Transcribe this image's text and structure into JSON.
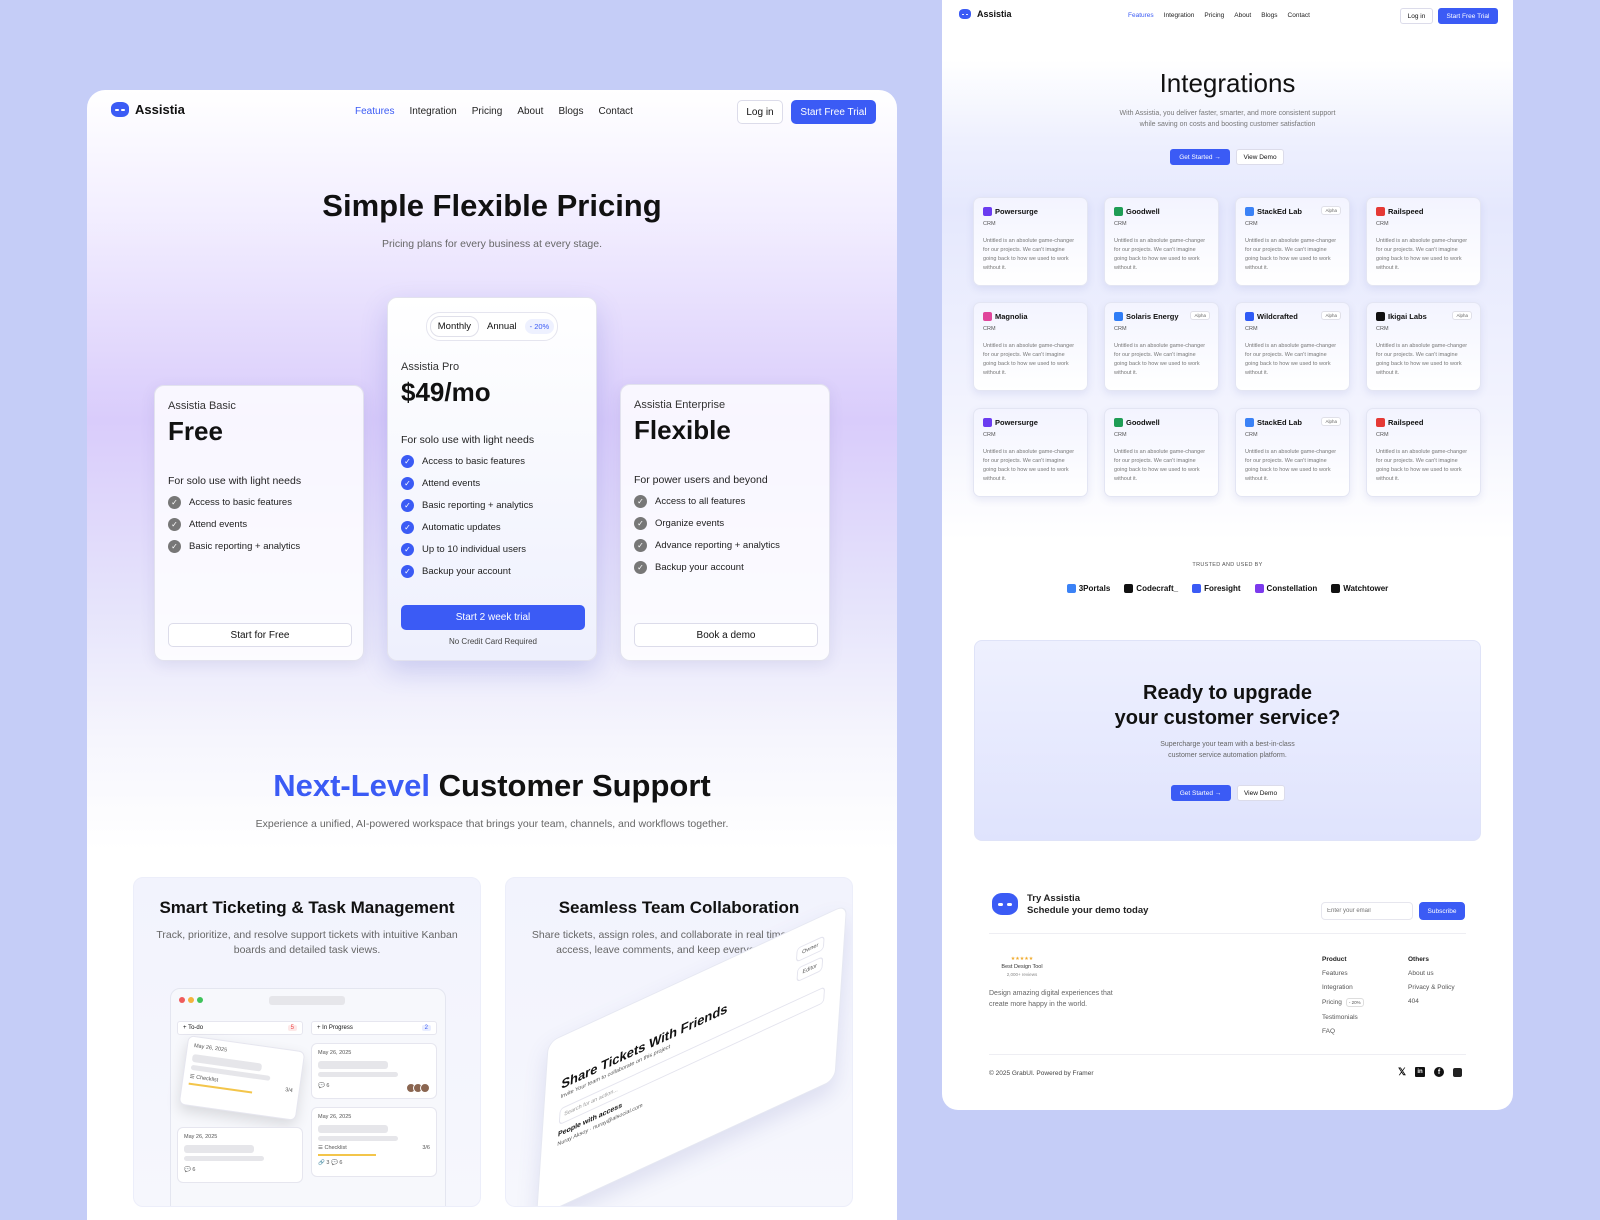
{
  "colors": {
    "accent": "#3b5bf5",
    "background": "#c5cdf7"
  },
  "brand": "Assistia",
  "nav": {
    "items": [
      "Features",
      "Integration",
      "Pricing",
      "About",
      "Blogs",
      "Contact"
    ],
    "active": "Features",
    "login": "Log in",
    "trial": "Start Free Trial"
  },
  "pricing": {
    "title": "Simple Flexible Pricing",
    "subtitle": "Pricing plans for every business at every stage.",
    "toggle": {
      "monthly": "Monthly",
      "annual": "Annual",
      "discount": "- 20%",
      "selected": "Monthly"
    },
    "plans": [
      {
        "name": "Assistia Basic",
        "price": "Free",
        "desc": "For solo use with light needs",
        "features": [
          "Access to basic features",
          "Attend events",
          "Basic reporting + analytics"
        ],
        "cta": "Start for Free"
      },
      {
        "name": "Assistia Pro",
        "price": "$49/mo",
        "desc": "For solo use with light needs",
        "features": [
          "Access to basic features",
          "Attend events",
          "Basic reporting + analytics",
          "Automatic updates",
          "Up to 10 individual users",
          "Backup your account"
        ],
        "cta": "Start 2 week trial",
        "note": "No Credit Card Required"
      },
      {
        "name": "Assistia Enterprise",
        "price": "Flexible",
        "desc": "For power users and beyond",
        "features": [
          "Access to all features",
          "Organize events",
          "Advance reporting + analytics",
          "Backup your account"
        ],
        "cta": "Book a demo"
      }
    ]
  },
  "support": {
    "title_accent": "Next-Level",
    "title_rest": "Customer Support",
    "subtitle": "Experience a unified, AI-powered workspace that brings your team, channels, and workflows together.",
    "features": [
      {
        "title": "Smart Ticketing & Task Management",
        "desc": "Track, prioritize, and resolve support tickets with intuitive Kanban boards and detailed task views."
      },
      {
        "title": "Seamless Team Collaboration",
        "desc": "Share tickets, assign roles, and collaborate in real time. Control access, leave comments, and keep everyone in sync"
      }
    ],
    "kanban": {
      "todo": "To-do",
      "todo_count": "5",
      "progress": "In Progress",
      "progress_count": "2",
      "date": "May 26, 2025",
      "checklist": "Checklist",
      "checklist_a": "3/4",
      "checklist_b": "3/6",
      "links": "3",
      "comments": "6"
    },
    "share": {
      "title": "Share Tickets With Friends",
      "subtitle": "Invite Your team to collaborate on this project",
      "search": "Search for an action...",
      "people": "People with access",
      "person": "Nuray Aksoy",
      "email": "nuray@alsocial.com",
      "owner": "Owner",
      "editor": "Editor"
    }
  },
  "integrations": {
    "title": "Integrations",
    "subtitle_1": "With Assistia, you deliver faster, smarter, and more consistent support",
    "subtitle_2": "while saving on costs and boosting customer satisfaction",
    "get_started": "Get Started",
    "view_demo": "View Demo",
    "card_desc": "Untitled is an absolute game-changer for our projects. We can't imagine going back to how we used to work without it.",
    "alpha_label": "Alpha",
    "items": [
      {
        "name": "Powersurge",
        "category": "CRM",
        "alpha": false,
        "color": "#6b3cf0"
      },
      {
        "name": "Goodwell",
        "category": "CRM",
        "alpha": false,
        "color": "#1f9d55"
      },
      {
        "name": "StackEd Lab",
        "category": "CRM",
        "alpha": true,
        "color": "#3b82f6"
      },
      {
        "name": "Railspeed",
        "category": "CRM",
        "alpha": false,
        "color": "#e53935"
      },
      {
        "name": "Magnolia",
        "category": "CRM",
        "alpha": false,
        "color": "#e0459b"
      },
      {
        "name": "Solaris Energy",
        "category": "CRM",
        "alpha": true,
        "color": "#2f7df6"
      },
      {
        "name": "Wildcrafted",
        "category": "CRM",
        "alpha": true,
        "color": "#2f5bf6"
      },
      {
        "name": "Ikigai Labs",
        "category": "CRM",
        "alpha": true,
        "color": "#111111"
      },
      {
        "name": "Powersurge",
        "category": "CRM",
        "alpha": false,
        "color": "#6b3cf0"
      },
      {
        "name": "Goodwell",
        "category": "CRM",
        "alpha": false,
        "color": "#1f9d55"
      },
      {
        "name": "StackEd Lab",
        "category": "CRM",
        "alpha": true,
        "color": "#3b82f6"
      },
      {
        "name": "Railspeed",
        "category": "CRM",
        "alpha": false,
        "color": "#e53935"
      }
    ],
    "trusted_label": "TRUSTED AND USED BY",
    "trusted": [
      {
        "name": "3Portals",
        "color": "#3b82f6"
      },
      {
        "name": "Codecraft_",
        "color": "#111111"
      },
      {
        "name": "Foresight",
        "color": "#3b5bf5"
      },
      {
        "name": "Constellation",
        "color": "#7c3aed"
      },
      {
        "name": "Watchtower",
        "color": "#111111"
      }
    ]
  },
  "cta": {
    "title_1": "Ready to upgrade",
    "title_2": "your customer service?",
    "subtitle_1": "Supercharge your team with a best-in-class",
    "subtitle_2": "customer service automation platform.",
    "get_started": "Get Started",
    "view_demo": "View Demo"
  },
  "footer": {
    "try_1": "Try Assistia",
    "try_2": "Schedule your demo today",
    "email_placeholder": "Enter your email",
    "subscribe": "Subscribe",
    "award": {
      "stars": "★★★★★",
      "title": "Best Design Tool",
      "reviews": "2,000+ reviews"
    },
    "tagline_1": "Design amazing digital experiences that",
    "tagline_2": "create more happy in the world.",
    "product_title": "Product",
    "product": [
      "Features",
      "Integration",
      "Pricing",
      "Testimonials",
      "FAQ"
    ],
    "pricing_badge": "- 20%",
    "others_title": "Others",
    "others": [
      "About us",
      "Privacy & Policy",
      "404"
    ],
    "copyright": "© 2025 GrabUI. Powered by Framer",
    "social": [
      "x-icon",
      "linkedin-icon",
      "facebook-icon",
      "framer-icon"
    ]
  }
}
